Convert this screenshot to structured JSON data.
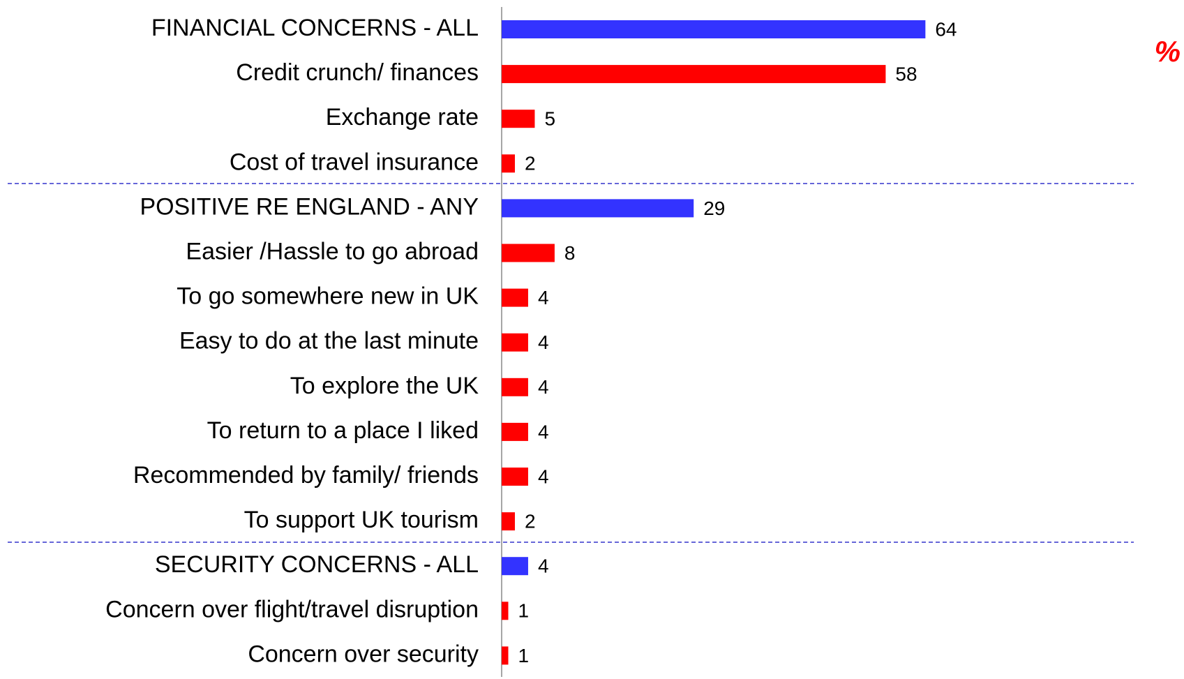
{
  "chart_data": {
    "type": "bar",
    "orientation": "horizontal",
    "unit_label": "%",
    "categories": [
      "FINANCIAL CONCERNS - ALL",
      "Credit crunch/ finances",
      "Exchange rate",
      "Cost of travel insurance",
      "POSITIVE RE ENGLAND - ANY",
      "Easier /Hassle to go abroad",
      "To go somewhere new in UK",
      "Easy to do at the last minute",
      "To explore the UK",
      "To return to a place I liked",
      "Recommended by family/ friends",
      "To support UK tourism",
      "SECURITY CONCERNS - ALL",
      "Concern over flight/travel disruption",
      "Concern over security"
    ],
    "values": [
      64,
      58,
      5,
      2,
      29,
      8,
      4,
      4,
      4,
      4,
      4,
      2,
      4,
      1,
      1
    ],
    "colors": [
      "#3333ff",
      "#ff0000",
      "#ff0000",
      "#ff0000",
      "#3333ff",
      "#ff0000",
      "#ff0000",
      "#ff0000",
      "#ff0000",
      "#ff0000",
      "#ff0000",
      "#ff0000",
      "#3333ff",
      "#ff0000",
      "#ff0000"
    ],
    "xlim": [
      0,
      100
    ]
  }
}
